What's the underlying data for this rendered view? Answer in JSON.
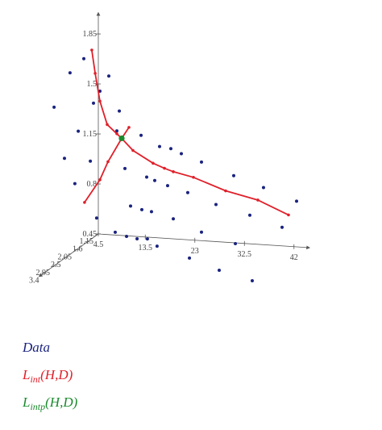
{
  "chart_data": {
    "type": "scatter3d",
    "xlim": [
      4.5,
      45
    ],
    "ylim": [
      1.15,
      3.6
    ],
    "zlim": [
      0.45,
      2
    ],
    "xticks": [
      4.5,
      13.5,
      23,
      32.5,
      42
    ],
    "yticks": [
      1.15,
      1.6,
      2.05,
      2.5,
      2.95,
      3.4
    ],
    "zticks": [
      0.45,
      0.8,
      1.15,
      1.5,
      1.85
    ],
    "series": [
      {
        "name": "Data",
        "color": "#1a237e",
        "mode": "markers",
        "x": [
          4.5,
          4.5,
          4.5,
          4.5,
          4.5,
          4.5,
          4.5,
          4.5,
          4.81,
          6.51,
          8.52,
          8.05,
          12.69,
          16.24,
          18.4,
          20.41,
          24.27,
          9.6,
          13.77,
          15.31,
          17.78,
          21.64,
          30.45,
          36.16,
          42.5,
          39.72,
          10.68,
          12.84,
          14.69,
          18.87,
          27.05,
          33.54,
          4.5,
          7.74,
          10.05,
          12.48,
          14.32,
          24.27,
          30.95,
          17.8,
          26.41,
          34.62,
          42.99
        ],
        "y": [
          1.75,
          2.32,
          2.98,
          2.55,
          1.98,
          2.12,
          1.48,
          1.35,
          1.15,
          1.15,
          1.15,
          1.15,
          1.15,
          1.15,
          1.15,
          1.15,
          1.15,
          1.15,
          1.15,
          1.15,
          1.15,
          1.15,
          1.15,
          1.15,
          1.15,
          1.15,
          1.15,
          1.15,
          1.15,
          1.15,
          1.15,
          1.15,
          1.22,
          1.15,
          1.18,
          1.27,
          1.24,
          1.15,
          1.19,
          1.59,
          2.11,
          2.65,
          3.09
        ],
        "z": [
          1.75,
          1.72,
          1.56,
          1.15,
          1.27,
          0.92,
          1.0,
          1.39,
          1.45,
          1.56,
          1.32,
          1.18,
          1.16,
          1.09,
          1.08,
          1.05,
          1.0,
          0.92,
          0.87,
          0.85,
          0.82,
          0.78,
          0.92,
          0.85,
          0.77,
          0.58,
          0.66,
          0.64,
          0.63,
          0.59,
          0.71,
          0.65,
          0.57,
          0.47,
          0.45,
          0.45,
          0.45,
          0.51,
          0.45,
          0.45,
          0.45,
          0.45,
          0.45
        ]
      },
      {
        "name": "Lint(H,D)",
        "color": "#e0202a",
        "mode": "lines",
        "x": [
          4.5,
          4.5,
          4.81,
          6.2,
          8.05,
          8.98,
          11.14,
          14.99,
          17.17,
          18.87,
          22.73,
          28.9,
          35.08,
          40.95,
          null,
          4.5,
          4.81,
          6.35,
          8.98,
          10.37
        ],
        "y": [
          1.42,
          1.28,
          1.15,
          1.15,
          1.15,
          1.15,
          1.15,
          1.15,
          1.15,
          1.15,
          1.15,
          1.15,
          1.15,
          1.15,
          null,
          1.72,
          1.15,
          1.15,
          1.15,
          1.15
        ],
        "z": [
          1.77,
          1.59,
          1.38,
          1.22,
          1.16,
          1.13,
          1.05,
          0.97,
          0.94,
          0.92,
          0.89,
          0.81,
          0.76,
          0.67,
          null,
          0.74,
          0.83,
          0.96,
          1.13,
          1.21
        ]
      },
      {
        "name": "Lintp(H,D)",
        "color": "#1b8a2e",
        "mode": "markers",
        "x": [
          8.98
        ],
        "y": [
          1.15
        ],
        "z": [
          1.13
        ]
      }
    ]
  }
}
